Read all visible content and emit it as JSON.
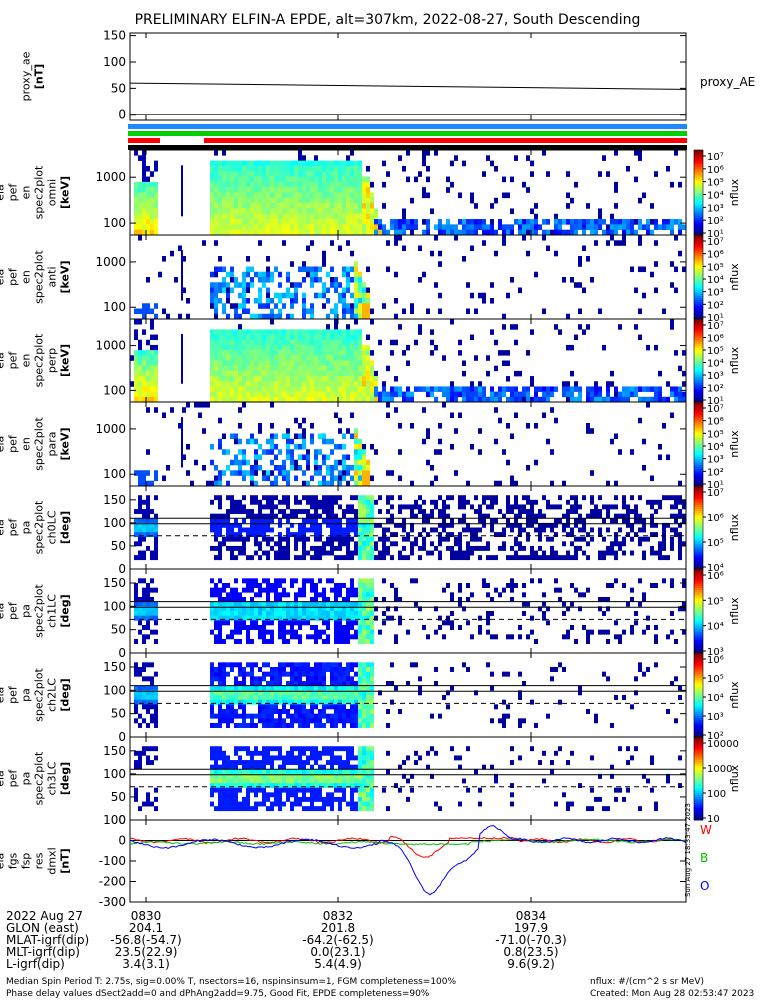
{
  "title": "PRELIMINARY ELFIN-A EPDE, alt=307km, 2022-08-27, South Descending",
  "chart_data": [
    {
      "type": "line",
      "ylabel_lines": [
        "proxy_ae",
        "[nT]"
      ],
      "yticks": [
        "150",
        "100",
        "50",
        "0"
      ],
      "ylim": [
        -10,
        155
      ],
      "series": [
        {
          "name": "proxy_AE",
          "start": 60,
          "end": 48
        }
      ]
    },
    {
      "type": "heatmap",
      "ylabel_lines": [
        "ela",
        "pef",
        "en",
        "spec2plot",
        "omni",
        "[keV]"
      ],
      "yticks": [
        "1000",
        "100"
      ],
      "cbar_label": "nflux",
      "cbar_ticks": [
        "10⁷",
        "10⁶",
        "10⁵",
        "10⁴",
        "10³",
        "10²",
        "10¹"
      ]
    },
    {
      "type": "heatmap",
      "ylabel_lines": [
        "ela",
        "pef",
        "en",
        "spec2plot",
        "anti",
        "[keV]"
      ],
      "yticks": [
        "1000",
        "100"
      ],
      "cbar_label": "nflux",
      "cbar_ticks": [
        "10⁷",
        "10⁶",
        "10⁵",
        "10⁴",
        "10³",
        "10²",
        "10¹"
      ]
    },
    {
      "type": "heatmap",
      "ylabel_lines": [
        "ela",
        "pef",
        "en",
        "spec2plot",
        "perp",
        "[keV]"
      ],
      "yticks": [
        "1000",
        "100"
      ],
      "cbar_label": "nflux",
      "cbar_ticks": [
        "10⁷",
        "10⁶",
        "10⁵",
        "10⁴",
        "10³",
        "10²",
        "10¹"
      ]
    },
    {
      "type": "heatmap",
      "ylabel_lines": [
        "ela",
        "pef",
        "en",
        "spec2plot",
        "para",
        "[keV]"
      ],
      "yticks": [
        "1000",
        "100"
      ],
      "cbar_label": "nflux",
      "cbar_ticks": [
        "10⁷",
        "10⁶",
        "10⁵",
        "10⁴",
        "10³",
        "10²",
        "10¹"
      ]
    },
    {
      "type": "heatmap",
      "ylabel_lines": [
        "ela",
        "pef",
        "pa",
        "spec2plot",
        "ch0LC",
        "[deg]"
      ],
      "yticks": [
        "150",
        "100",
        "50",
        "0"
      ],
      "cbar_label": "nflux",
      "cbar_ticks": [
        "10⁷",
        "10⁶",
        "10⁵",
        "10⁴"
      ]
    },
    {
      "type": "heatmap",
      "ylabel_lines": [
        "ela",
        "pef",
        "pa",
        "spec2plot",
        "ch1LC",
        "[deg]"
      ],
      "yticks": [
        "150",
        "100",
        "50",
        "0"
      ],
      "cbar_label": "nflux",
      "cbar_ticks": [
        "10⁶",
        "10⁵",
        "10⁴",
        "10³"
      ]
    },
    {
      "type": "heatmap",
      "ylabel_lines": [
        "ela",
        "pef",
        "pa",
        "spec2plot",
        "ch2LC",
        "[deg]"
      ],
      "yticks": [
        "150",
        "100",
        "50",
        "0"
      ],
      "cbar_label": "nflux",
      "cbar_ticks": [
        "10⁶",
        "10⁵",
        "10⁴",
        "10³",
        "10²"
      ]
    },
    {
      "type": "heatmap",
      "ylabel_lines": [
        "ela",
        "pef",
        "pa",
        "spec2plot",
        "ch3LC",
        "[deg]"
      ],
      "yticks": [
        "150",
        "100",
        "50",
        "0"
      ],
      "cbar_label": "nflux",
      "cbar_ticks": [
        "10000",
        "1000",
        "100",
        "10"
      ]
    },
    {
      "type": "line",
      "ylabel_lines": [
        "ela",
        "fgs",
        "fsp",
        "res",
        "dmxl",
        "[nT]"
      ],
      "yticks": [
        "100",
        "0",
        "-100",
        "-200",
        "-300"
      ],
      "ylim": [
        -300,
        100
      ],
      "series": [
        {
          "name": "W",
          "color": "#ff0000"
        },
        {
          "name": "B",
          "color": "#00c000"
        },
        {
          "name": "O",
          "color": "#0000ff"
        }
      ]
    }
  ],
  "xaxis": {
    "rows": [
      [
        "2022 Aug 27",
        "0830",
        "",
        "0832",
        "",
        "0834"
      ],
      [
        "GLON (east)",
        "204.1",
        "",
        "201.8",
        "",
        "197.9"
      ],
      [
        "MLAT-igrf(dip)",
        "-56.8(-54.7)",
        "",
        "-64.2(-62.5)",
        "",
        "-71.0(-70.3)"
      ],
      [
        "MLT-igrf(dip)",
        "23.5(22.9)",
        "",
        "0.0(23.1)",
        "",
        "0.8(23.5)"
      ],
      [
        "L-igrf(dip)",
        "3.4(3.1)",
        "",
        "5.4(4.9)",
        "",
        "9.6(9.2)"
      ]
    ]
  },
  "footer": {
    "line1": "Median Spin Period T: 2.75s, sig=0.00% T, nsectors=16, nspinsinsum=1, FGM completeness=100%",
    "line2": "Phase delay values dSect2add=0 and dPhAng2add=9.75, Good Fit, EPDE completeness=90%",
    "units": "nflux: #/(cm^2 s sr MeV)",
    "created": "Created: Mon Aug 28 02:53:47 2023",
    "vertical_stamp": "Sun Aug 27 18:33:47 2023"
  }
}
